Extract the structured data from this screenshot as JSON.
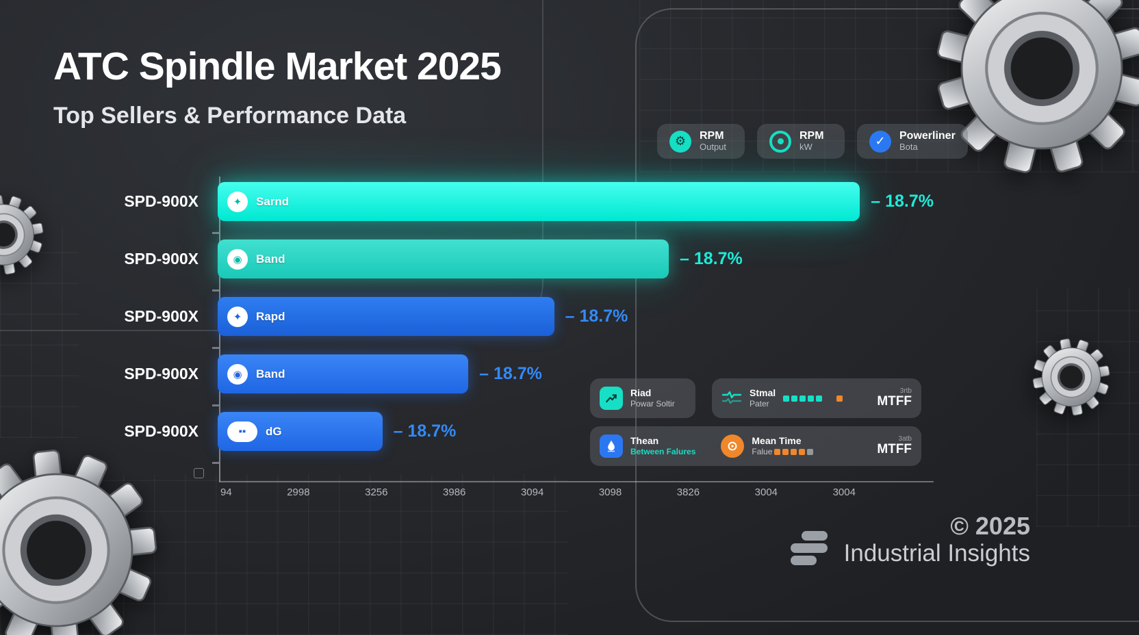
{
  "header": {
    "title": "ATC Spindle Market 2025",
    "subtitle": "Top Sellers & Performance Data"
  },
  "badges": [
    {
      "icon": "gear-icon",
      "line1": "RPM",
      "line2": "Output"
    },
    {
      "icon": "spindle-icon",
      "line1": "RPM",
      "line2": "kW"
    },
    {
      "icon": "shield-icon",
      "line1": "Powerliner",
      "line2": "Bota"
    }
  ],
  "colors": {
    "cyan": "#0df2de",
    "teal": "#16dfc8",
    "blue": "#2b77f2",
    "orange": "#f0872a",
    "gray_square": "#93989d"
  },
  "chart_data": {
    "type": "bar",
    "orientation": "horizontal",
    "title": "ATC Spindle Market 2025",
    "subtitle": "Top Sellers & Performance Data",
    "xlabel": "",
    "ylabel": "",
    "grid": false,
    "legend_position": "bottom-right",
    "categories": [
      "SPD-900X",
      "SPD-900X",
      "SPD-900X",
      "SPD-900X",
      "SPD-900X"
    ],
    "bars": [
      {
        "label": "Sarnd",
        "delta": "– 18.7%",
        "length_pct": 90,
        "color_top": "#46fdee",
        "color_bottom": "#00e9d3",
        "delta_color": "#1debd9",
        "glow": "cyan",
        "icon_glyph": "✦",
        "icon_color": "#0ab8a6",
        "icon_shape": "circle"
      },
      {
        "label": "Band",
        "delta": "– 18.7%",
        "length_pct": 63,
        "color_top": "#41e0d0",
        "color_bottom": "#19c9b8",
        "delta_color": "#1debd9",
        "glow": "teal",
        "icon_glyph": "◉",
        "icon_color": "#0ab8a6",
        "icon_shape": "circle"
      },
      {
        "label": "Rapd",
        "delta": "– 18.7%",
        "length_pct": 47,
        "color_top": "#2e7df0",
        "color_bottom": "#1b60d8",
        "delta_color": "#338af8",
        "glow": "blue",
        "icon_glyph": "✦",
        "icon_color": "#2163e0",
        "icon_shape": "circle"
      },
      {
        "label": "Band",
        "delta": "– 18.7%",
        "length_pct": 35,
        "color_top": "#3a85f6",
        "color_bottom": "#1f66e4",
        "delta_color": "#338af8",
        "glow": "blue",
        "icon_glyph": "◉",
        "icon_color": "#2163e0",
        "icon_shape": "circle"
      },
      {
        "label": "dG",
        "delta": "– 18.7%",
        "length_pct": 23,
        "color_top": "#3a85f6",
        "color_bottom": "#1f66e4",
        "delta_color": "#338af8",
        "glow": "blue",
        "icon_glyph": "▪▪",
        "icon_color": "#2163e0",
        "icon_shape": "pill"
      }
    ],
    "x_ticks": [
      "94",
      "2998",
      "3256",
      "3986",
      "3094",
      "3098",
      "3826",
      "3004",
      "3004"
    ]
  },
  "legend": {
    "power_card": {
      "title": "Riad",
      "subtitle": "Powar Soltir"
    },
    "signal_card": {
      "title": "Stmal",
      "subtitle": "Pater",
      "teal_squares": 5,
      "orange_squares": 1,
      "mtff_small": "3rtb",
      "mtff_label": "MTFF"
    },
    "mtbf_card": {
      "title": "Thean",
      "subtitle": "Between Falures"
    },
    "meantime_card": {
      "title": "Mean Time",
      "subtitle": "Falue",
      "orange_squares": 4,
      "gray_squares": 1,
      "mtff_small": "3atb",
      "mtff_label": "MTFF"
    }
  },
  "footer": {
    "copyright": "© 2025",
    "brand": "Industrial Insights"
  }
}
